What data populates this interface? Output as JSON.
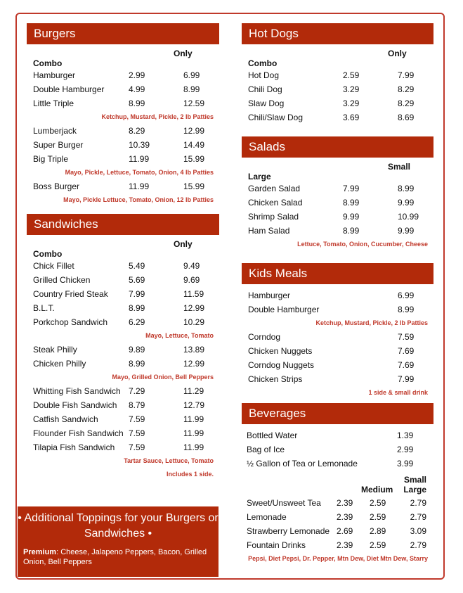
{
  "burgers": {
    "title": "Burgers",
    "col_only": "Only",
    "col_combo": "Combo",
    "items": [
      {
        "name": "Hamburger",
        "p1": "2.99",
        "p2": "6.99"
      },
      {
        "name": "Double Hamburger",
        "p1": "4.99",
        "p2": "8.99"
      },
      {
        "name": "Little Triple",
        "p1": "8.99",
        "p2": "12.59"
      },
      {
        "note": "Ketchup, Mustard, Pickle, 2 lb Patties"
      },
      {
        "name": "Lumberjack",
        "p1": "8.29",
        "p2": "12.99"
      },
      {
        "name": "Super Burger",
        "p1": "10.39",
        "p2": "14.49"
      },
      {
        "name": "Big Triple",
        "p1": "11.99",
        "p2": "15.99"
      },
      {
        "note": "Mayo, Pickle, Lettuce, Tomato, Onion, 4 lb Patties"
      },
      {
        "name": "Boss Burger",
        "p1": "11.99",
        "p2": "15.99"
      },
      {
        "note": "Mayo, Pickle Lettuce, Tomato, Onion, 12 lb Patties"
      }
    ]
  },
  "sandwiches": {
    "title": "Sandwiches",
    "col_only": "Only",
    "col_combo": "Combo",
    "items": [
      {
        "name": "Chick Fillet",
        "p1": "5.49",
        "p2": "9.49"
      },
      {
        "name": "Grilled Chicken",
        "p1": "5.69",
        "p2": "9.69"
      },
      {
        "name": "Country Fried Steak",
        "p1": "7.99",
        "p2": "11.59"
      },
      {
        "name": "B.L.T.",
        "p1": "8.99",
        "p2": "12.99"
      },
      {
        "name": "Porkchop Sandwich",
        "p1": "6.29",
        "p2": "10.29"
      },
      {
        "note": "Mayo, Lettuce, Tomato"
      },
      {
        "name": "Steak Philly",
        "p1": "9.89",
        "p2": "13.89"
      },
      {
        "name": "Chicken Philly",
        "p1": "8.99",
        "p2": "12.99"
      },
      {
        "note": "Mayo, Grilled Onion, Bell Peppers"
      },
      {
        "name": "Whitting Fish Sandwich",
        "p1": "7.29",
        "p2": "11.29"
      },
      {
        "name": "Double Fish Sandwich",
        "p1": "8.79",
        "p2": "12.79"
      },
      {
        "name": "Catfish Sandwich",
        "p1": "7.59",
        "p2": "11.99"
      },
      {
        "name": "Flounder Fish Sandwich",
        "p1": "7.59",
        "p2": "11.99"
      },
      {
        "name": "Tilapia Fish Sandwich",
        "p1": "7.59",
        "p2": "11.99"
      },
      {
        "note": "Tartar Sauce, Lettuce, Tomato"
      },
      {
        "note": "Includes 1 side."
      }
    ]
  },
  "hotdogs": {
    "title": "Hot Dogs",
    "col_only": "Only",
    "col_combo": "Combo",
    "items": [
      {
        "name": "Hot Dog",
        "p1": "2.59",
        "p2": "7.99"
      },
      {
        "name": "Chili Dog",
        "p1": "3.29",
        "p2": "8.29"
      },
      {
        "name": "Slaw Dog",
        "p1": "3.29",
        "p2": "8.29"
      },
      {
        "name": "Chili/Slaw Dog",
        "p1": "3.69",
        "p2": "8.69"
      }
    ]
  },
  "salads": {
    "title": "Salads",
    "col_only": "Small",
    "col_combo": "Large",
    "items": [
      {
        "name": "Garden Salad",
        "p1": "7.99",
        "p2": "8.99"
      },
      {
        "name": "Chicken Salad",
        "p1": "8.99",
        "p2": "9.99"
      },
      {
        "name": "Shrimp Salad",
        "p1": "9.99",
        "p2": "10.99"
      },
      {
        "name": "Ham Salad",
        "p1": "8.99",
        "p2": "9.99"
      },
      {
        "note": "Lettuce, Tomato, Onion, Cucumber, Cheese"
      }
    ]
  },
  "kids": {
    "title": "Kids Meals",
    "items": [
      {
        "name": "Hamburger",
        "p2": "6.99"
      },
      {
        "name": "Double Hamburger",
        "p2": "8.99"
      },
      {
        "note": "Ketchup, Mustard, Pickle, 2 lb Patties"
      },
      {
        "name": "Corndog",
        "p2": "7.59"
      },
      {
        "name": "Chicken Nuggets",
        "p2": "7.69"
      },
      {
        "name": "Corndog Nuggets",
        "p2": "7.69"
      },
      {
        "name": "Chicken Strips",
        "p2": "7.99"
      },
      {
        "note": "1 side & small drink"
      }
    ]
  },
  "beverages": {
    "title": "Beverages",
    "simple": [
      {
        "name": "Bottled Water",
        "price": "1.39"
      },
      {
        "name": "Bag of Ice",
        "price": "2.99"
      },
      {
        "name": "½ Gallon of Tea or Lemonade",
        "price": "3.99"
      }
    ],
    "col_small": "Small",
    "col_medium": "Medium",
    "col_large": "Large",
    "sized": [
      {
        "name": "Sweet/Unsweet Tea",
        "s": "2.39",
        "m": "2.59",
        "l": "2.79"
      },
      {
        "name": "Lemonade",
        "s": "2.39",
        "m": "2.59",
        "l": "2.79"
      },
      {
        "name": "Strawberry Lemonade",
        "s": "2.69",
        "m": "2.89",
        "l": "3.09"
      },
      {
        "name": "Fountain Drinks",
        "s": "2.39",
        "m": "2.59",
        "l": "2.79"
      }
    ],
    "note": "Pepsi, Diet Pepsi, Dr. Pepper, Mtn Dew, Diet Mtn Dew, Starry"
  },
  "toppings": {
    "title": "• Additional Toppings for your Burgers or Sandwiches •",
    "premium_label": "Premium",
    "premium_text": ": Cheese, Jalapeno Peppers, Bacon, Grilled Onion, Bell Peppers"
  },
  "colors": {
    "accent": "#b22a0a",
    "note": "#c0392b"
  }
}
